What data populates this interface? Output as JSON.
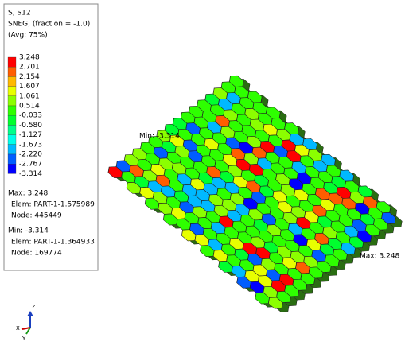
{
  "legend": {
    "title": "S, S12",
    "subtitle": "SNEG, (fraction = -1.0)",
    "average": "(Avg: 75%)",
    "values": [
      "3.248",
      "2.701",
      "2.154",
      "1.607",
      "1.061",
      "0.514",
      "-0.033",
      "-0.580",
      "-1.127",
      "-1.673",
      "-2.220",
      "-2.767",
      "-3.314"
    ],
    "colors": [
      "#ff0000",
      "#ff5d00",
      "#ffb900",
      "#e8ff00",
      "#8bff00",
      "#2eff00",
      "#00ff2e",
      "#00ff8b",
      "#00ffe8",
      "#00b9ff",
      "#005dff",
      "#0000ff"
    ]
  },
  "max": {
    "label": "Max: 3.248",
    "elem": "Elem: PART-1-1.575989",
    "node": "Node: 445449"
  },
  "min": {
    "label": "Min: -3.314",
    "elem": "Elem: PART-1-1.364933",
    "node": "Node: 169774"
  },
  "viewport": {
    "min_label": "Min: -3.314",
    "max_label": "Max: 3.248"
  },
  "triad": {
    "z": "Z",
    "x": "X",
    "y": "Y"
  }
}
